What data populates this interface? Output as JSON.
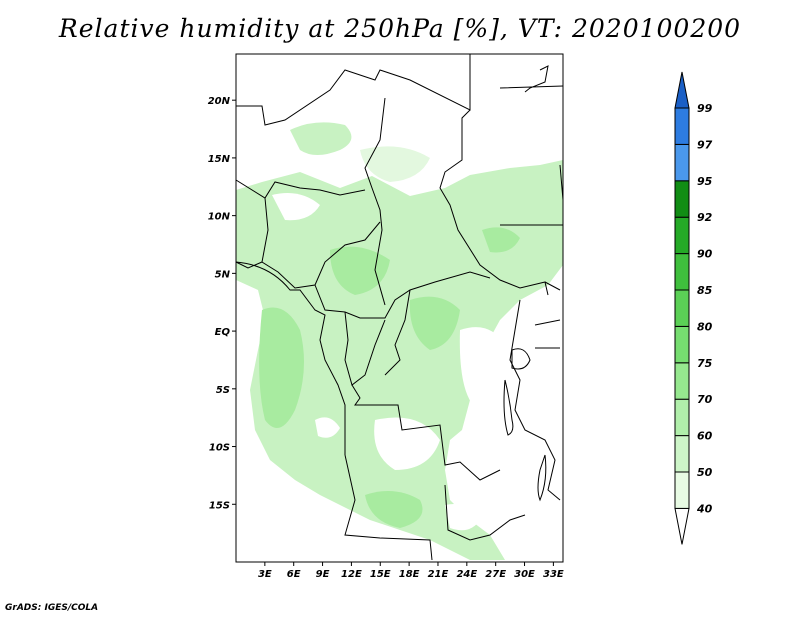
{
  "title": "Relative humidity at 250hPa [%], VT: 2020100200",
  "credit": "GrADS: IGES/COLA",
  "map": {
    "lat_range": [
      -20,
      24
    ],
    "lon_range": [
      0,
      34
    ],
    "lat_ticks": [
      {
        "value": 20,
        "label": "20N"
      },
      {
        "value": 15,
        "label": "15N"
      },
      {
        "value": 10,
        "label": "10N"
      },
      {
        "value": 5,
        "label": "5N"
      },
      {
        "value": 0,
        "label": "EQ"
      },
      {
        "value": -5,
        "label": "5S"
      },
      {
        "value": -10,
        "label": "10S"
      },
      {
        "value": -15,
        "label": "15S"
      }
    ],
    "lon_ticks": [
      {
        "value": 3,
        "label": "3E"
      },
      {
        "value": 6,
        "label": "6E"
      },
      {
        "value": 9,
        "label": "9E"
      },
      {
        "value": 12,
        "label": "12E"
      },
      {
        "value": 15,
        "label": "15E"
      },
      {
        "value": 18,
        "label": "18E"
      },
      {
        "value": 21,
        "label": "21E"
      },
      {
        "value": 24,
        "label": "24E"
      },
      {
        "value": 27,
        "label": "27E"
      },
      {
        "value": 30,
        "label": "30E"
      },
      {
        "value": 33,
        "label": "33E"
      }
    ]
  },
  "colorbar": {
    "levels": [
      "40",
      "50",
      "60",
      "70",
      "75",
      "80",
      "85",
      "90",
      "92",
      "95",
      "97",
      "99"
    ],
    "colors": [
      "#e8fbe4",
      "#cdf5c8",
      "#b1efab",
      "#96e88f",
      "#76dd70",
      "#5bd056",
      "#3fbf3d",
      "#25aa27",
      "#118d14",
      "#4a98ec",
      "#2d7ce1",
      "#1a5fc6"
    ],
    "below_color": "#ffffff"
  },
  "colors": {
    "border": "#000000",
    "light_green": "#c8f2c2",
    "mid_green": "#a8eba0",
    "pale_green": "#e3f8df"
  }
}
